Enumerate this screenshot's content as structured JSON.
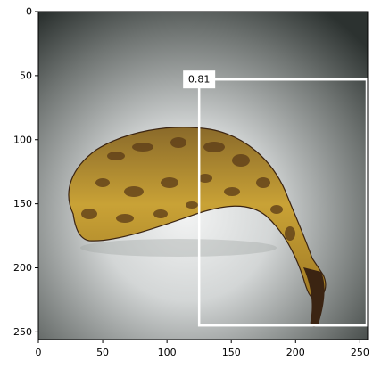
{
  "image": {
    "subject": "banana-photo",
    "x_range": [
      0,
      256
    ],
    "y_range": [
      0,
      256
    ],
    "background_colors": [
      "#2f3532",
      "#d9dcdc"
    ],
    "banana_colors": [
      "#c9a236",
      "#6b4a1e",
      "#3b2412"
    ]
  },
  "axes": {
    "x_ticks": [
      0,
      50,
      100,
      150,
      200,
      250
    ],
    "y_ticks": [
      0,
      50,
      100,
      150,
      200,
      250
    ]
  },
  "detection": {
    "score_label": "0.81",
    "box": {
      "x0": 125,
      "y0": 53,
      "x1": 256,
      "y1": 245
    },
    "box_color": "#ffffff"
  }
}
